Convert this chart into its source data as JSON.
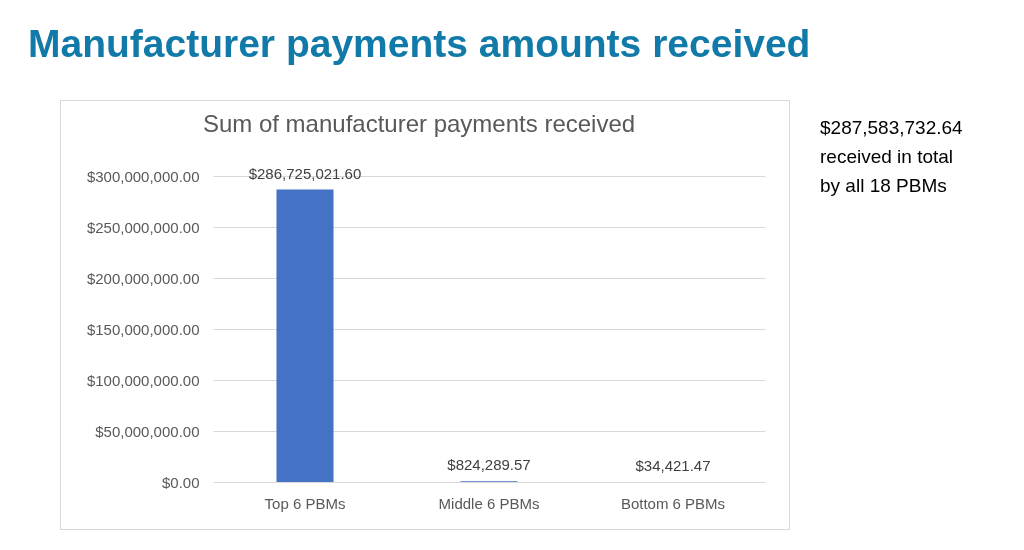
{
  "chart_data": {
    "type": "bar",
    "title": "Manufacturer payments amounts received",
    "subtitle": "Sum of manufacturer payments received",
    "categories": [
      "Top 6 PBMs",
      "Middle 6 PBMs",
      "Bottom 6 PBMs"
    ],
    "values": [
      286725021.6,
      824289.57,
      34421.47
    ],
    "value_labels": [
      "$286,725,021.60",
      "$824,289.57",
      "$34,421.47"
    ],
    "color": "#4472c4",
    "ylim": [
      0,
      300000000
    ],
    "yticks": [
      {
        "value": 0,
        "label": "$0.00"
      },
      {
        "value": 50000000,
        "label": "$50,000,000.00"
      },
      {
        "value": 100000000,
        "label": "$100,000,000.00"
      },
      {
        "value": 150000000,
        "label": "$150,000,000.00"
      },
      {
        "value": 200000000,
        "label": "$200,000,000.00"
      },
      {
        "value": 250000000,
        "label": "$250,000,000.00"
      },
      {
        "value": 300000000,
        "label": "$300,000,000.00"
      }
    ],
    "grid": "y",
    "annotations": [
      "$287,583,732.64\nreceived in total\nby all 18 PBMs"
    ]
  }
}
